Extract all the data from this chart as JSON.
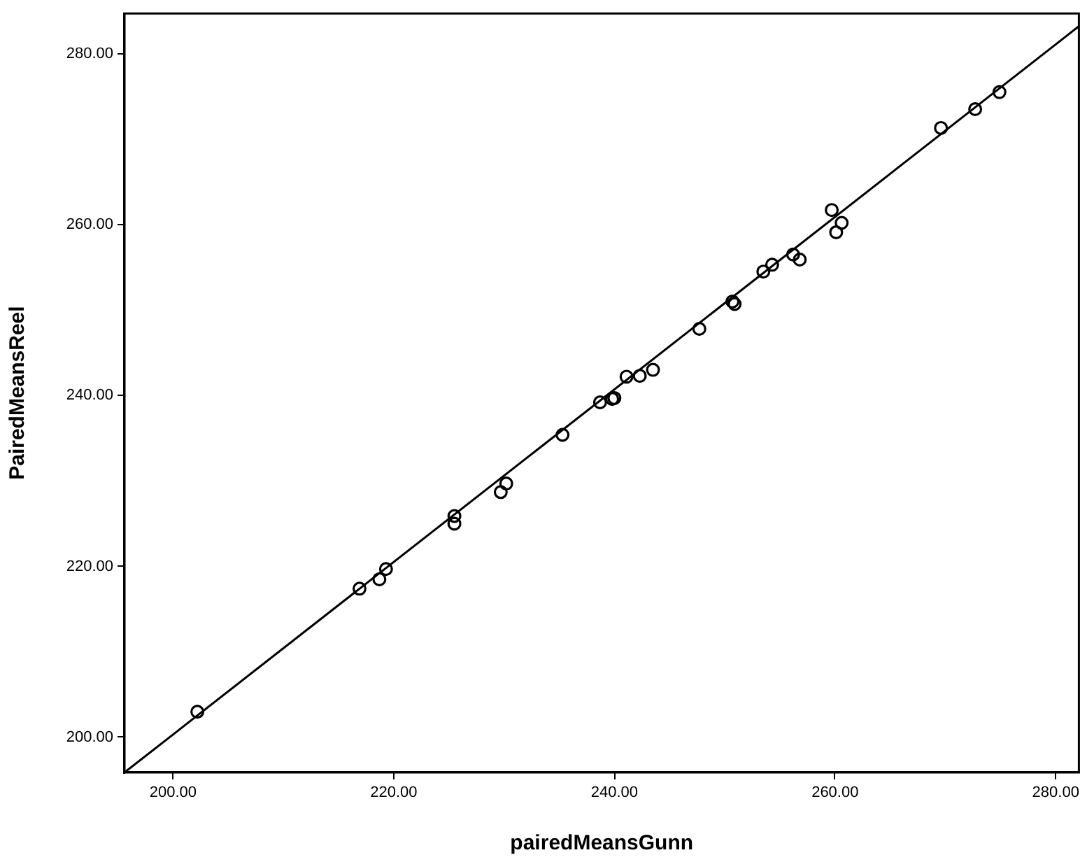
{
  "chart_data": {
    "type": "scatter",
    "xlabel": "pairedMeansGunn",
    "ylabel": "PairedMeansReel",
    "xlim": [
      195.6,
      282.1
    ],
    "ylim": [
      195.9,
      284.7
    ],
    "xticks": [
      {
        "value": 200,
        "label": "200.00"
      },
      {
        "value": 220,
        "label": "220.00"
      },
      {
        "value": 240,
        "label": "240.00"
      },
      {
        "value": 260,
        "label": "260.00"
      },
      {
        "value": 280,
        "label": "280.00"
      }
    ],
    "yticks": [
      {
        "value": 200,
        "label": "200.00"
      },
      {
        "value": 220,
        "label": "220.00"
      },
      {
        "value": 240,
        "label": "240.00"
      },
      {
        "value": 260,
        "label": "260.00"
      },
      {
        "value": 280,
        "label": "280.00"
      }
    ],
    "grid": false,
    "legend": false,
    "marker": "circle",
    "series": [
      {
        "color": "#000000",
        "x": [
          202.2,
          216.9,
          218.7,
          219.3,
          225.5,
          225.5,
          229.7,
          230.2,
          235.3,
          238.7,
          239.8,
          240.0,
          241.1,
          242.3,
          243.5,
          247.7,
          250.7,
          250.9,
          253.5,
          254.3,
          256.2,
          256.8,
          259.7,
          260.6,
          260.1,
          269.6,
          272.7,
          274.9
        ],
        "values": [
          203.0,
          217.4,
          218.5,
          219.7,
          225.9,
          225.0,
          228.7,
          229.7,
          235.4,
          239.2,
          239.6,
          239.7,
          242.2,
          242.3,
          243.0,
          247.8,
          251.0,
          250.7,
          254.5,
          255.3,
          256.5,
          255.9,
          261.7,
          260.2,
          259.1,
          271.3,
          273.5,
          275.5
        ]
      },
      {
        "type": "line",
        "color": "#000000",
        "x": [
          195.6,
          282.1
        ],
        "values": [
          195.9,
          283.2
        ],
        "line_style": "solid",
        "marker": "none"
      }
    ]
  }
}
